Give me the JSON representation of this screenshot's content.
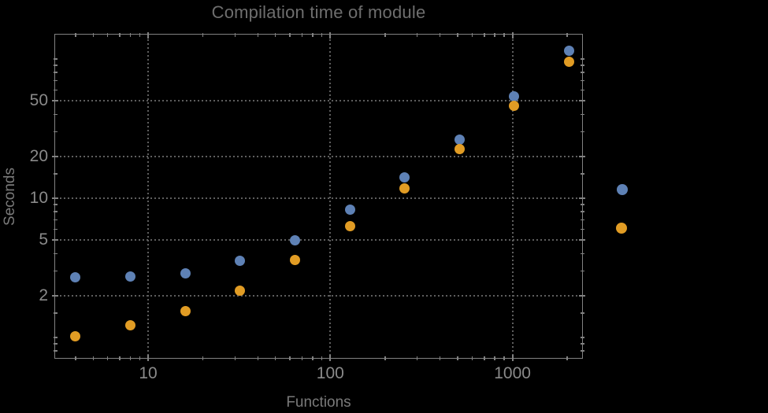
{
  "chart_data": {
    "type": "scatter",
    "title": "Compilation time of module",
    "xlabel": "Functions",
    "ylabel": "Seconds",
    "x_scale": "log",
    "y_scale": "log",
    "xlim": [
      3.05,
      2440
    ],
    "ylim": [
      0.7,
      152
    ],
    "grid": "dotted gray major gridlines on both axes",
    "x": [
      4,
      8,
      16,
      32,
      64,
      128,
      256,
      512,
      1024,
      2048
    ],
    "series": [
      {
        "name": "series-1-blue",
        "color": "#5E81B5",
        "values": [
          2.7,
          2.75,
          2.9,
          3.55,
          5.0,
          8.25,
          14.1,
          26.4,
          54,
          115
        ]
      },
      {
        "name": "series-2-orange",
        "color": "#E19C24",
        "values": [
          1.02,
          1.22,
          1.54,
          2.18,
          3.6,
          6.3,
          11.8,
          22.6,
          46,
          95
        ]
      }
    ],
    "x_major_ticks": {
      "values": [
        10,
        100,
        1000
      ],
      "labels": [
        "10",
        "100",
        "1000"
      ]
    },
    "y_major_ticks": {
      "values": [
        2,
        5,
        10,
        20,
        50
      ],
      "labels": [
        "2",
        "5",
        "10",
        "20",
        "50"
      ]
    },
    "x_minor_ticks": [
      4,
      5,
      6,
      7,
      8,
      9,
      20,
      30,
      40,
      50,
      60,
      70,
      80,
      90,
      200,
      300,
      400,
      500,
      600,
      700,
      800,
      900,
      2000
    ],
    "y_minor_ticks": [
      0.8,
      0.9,
      1,
      1.5,
      3,
      4,
      6,
      7,
      8,
      9,
      15,
      30,
      40,
      60,
      70,
      80,
      90,
      100
    ],
    "legend": {
      "position": "right of plot frame",
      "labels_visible": false,
      "markers": [
        {
          "series": "series-1-blue",
          "color": "#5E81B5"
        },
        {
          "series": "series-2-orange",
          "color": "#E19C24"
        }
      ]
    }
  },
  "colors": {
    "background": "#000000",
    "frame": "#828282",
    "gridline": "#5e5e5e",
    "tick": "#828282",
    "title_text": "#6e6e6e",
    "axis_label_text": "#7a7a7a",
    "tick_label_text": "#8a8a8a",
    "point_blue": "#5E81B5",
    "point_orange": "#E19C24"
  }
}
